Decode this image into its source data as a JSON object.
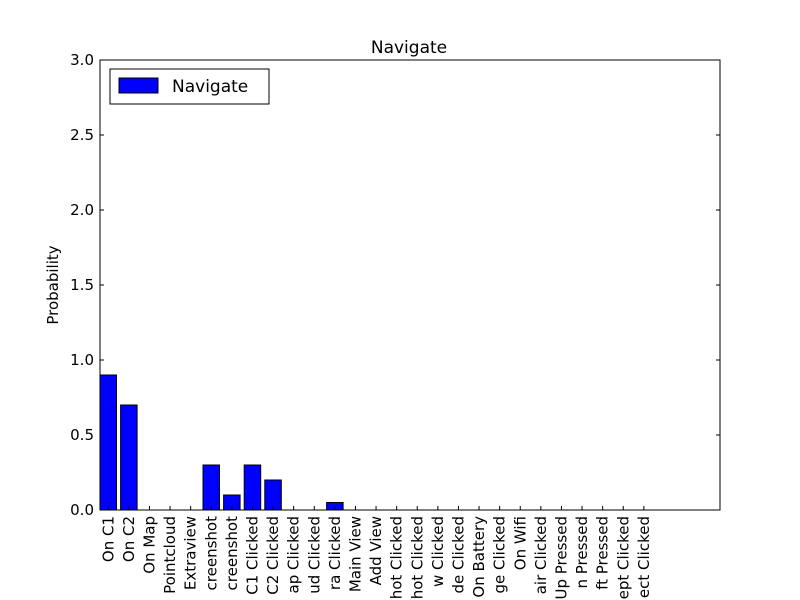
{
  "chart_data": {
    "type": "bar",
    "title": "Navigate",
    "xlabel": "",
    "ylabel": "Probability",
    "ylim": [
      0,
      3.0
    ],
    "yticks": [
      "0.0",
      "0.5",
      "1.0",
      "1.5",
      "2.0",
      "2.5",
      "3.0"
    ],
    "legend_position": "top-left",
    "bar_color": "#0000ff",
    "categories": [
      "On C1",
      "On C2",
      "On Map",
      "Pointcloud",
      "Extraview",
      "creenshot",
      "creenshot",
      "C1 Clicked",
      "C2 Clicked",
      "ap Clicked",
      "ud Clicked",
      "ra Clicked",
      "Main  View",
      "Add View",
      "hot Clicked",
      "hot Clicked",
      "w Clicked",
      "de Clicked",
      "On Battery",
      "ge Clicked",
      "On Wifi",
      "air Clicked",
      "Up Pressed",
      "n Pressed",
      "ft Pressed",
      "ept Clicked",
      "ect Clicked"
    ],
    "series": [
      {
        "name": "Navigate",
        "values": [
          0.9,
          0.7,
          0,
          0,
          0,
          0.3,
          0.1,
          0.3,
          0.2,
          0,
          0,
          0.05,
          0,
          0,
          0,
          0,
          0,
          0,
          0,
          0,
          0,
          0,
          0,
          0,
          0,
          0,
          0
        ]
      }
    ]
  }
}
